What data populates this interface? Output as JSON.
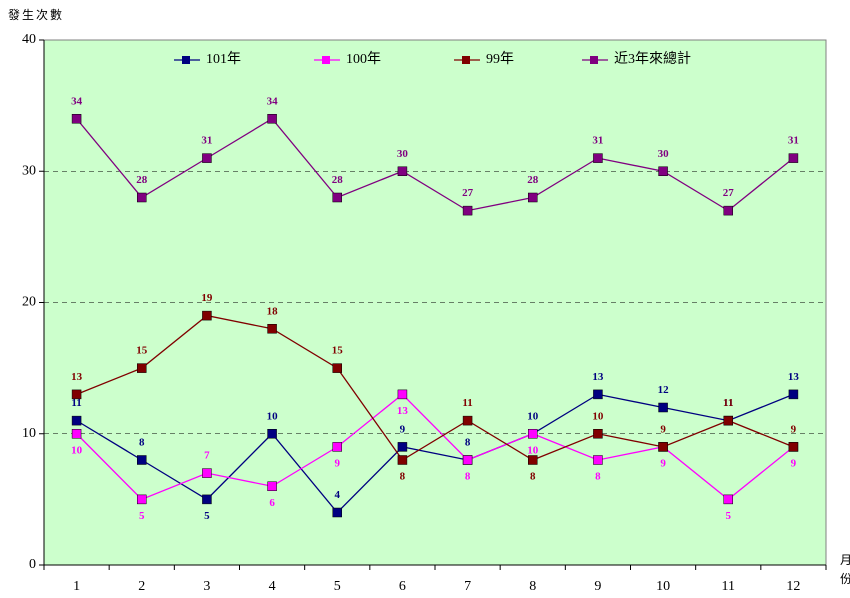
{
  "chart_data": {
    "type": "line",
    "y_label": "發生次數",
    "x_label": "月份",
    "categories": [
      "1",
      "2",
      "3",
      "4",
      "5",
      "6",
      "7",
      "8",
      "9",
      "10",
      "11",
      "12"
    ],
    "series": [
      {
        "name": "101年",
        "color": "#000080",
        "values": [
          11,
          8,
          5,
          10,
          4,
          9,
          8,
          10,
          13,
          12,
          11,
          13
        ]
      },
      {
        "name": "100年",
        "color": "#ff00ff",
        "values": [
          10,
          5,
          7,
          6,
          9,
          13,
          8,
          10,
          8,
          9,
          5,
          9
        ]
      },
      {
        "name": "99年",
        "color": "#800000",
        "values": [
          13,
          15,
          19,
          18,
          15,
          8,
          11,
          8,
          10,
          9,
          11,
          9
        ]
      },
      {
        "name": "近3年來總計",
        "color": "#800080",
        "values": [
          34,
          28,
          31,
          34,
          28,
          30,
          27,
          28,
          31,
          30,
          27,
          31
        ]
      }
    ],
    "ylim": [
      0,
      40
    ],
    "yticks": [
      0,
      10,
      20,
      30,
      40
    ],
    "grid": true,
    "plot_background": "#ccffcc",
    "legend": "top"
  }
}
